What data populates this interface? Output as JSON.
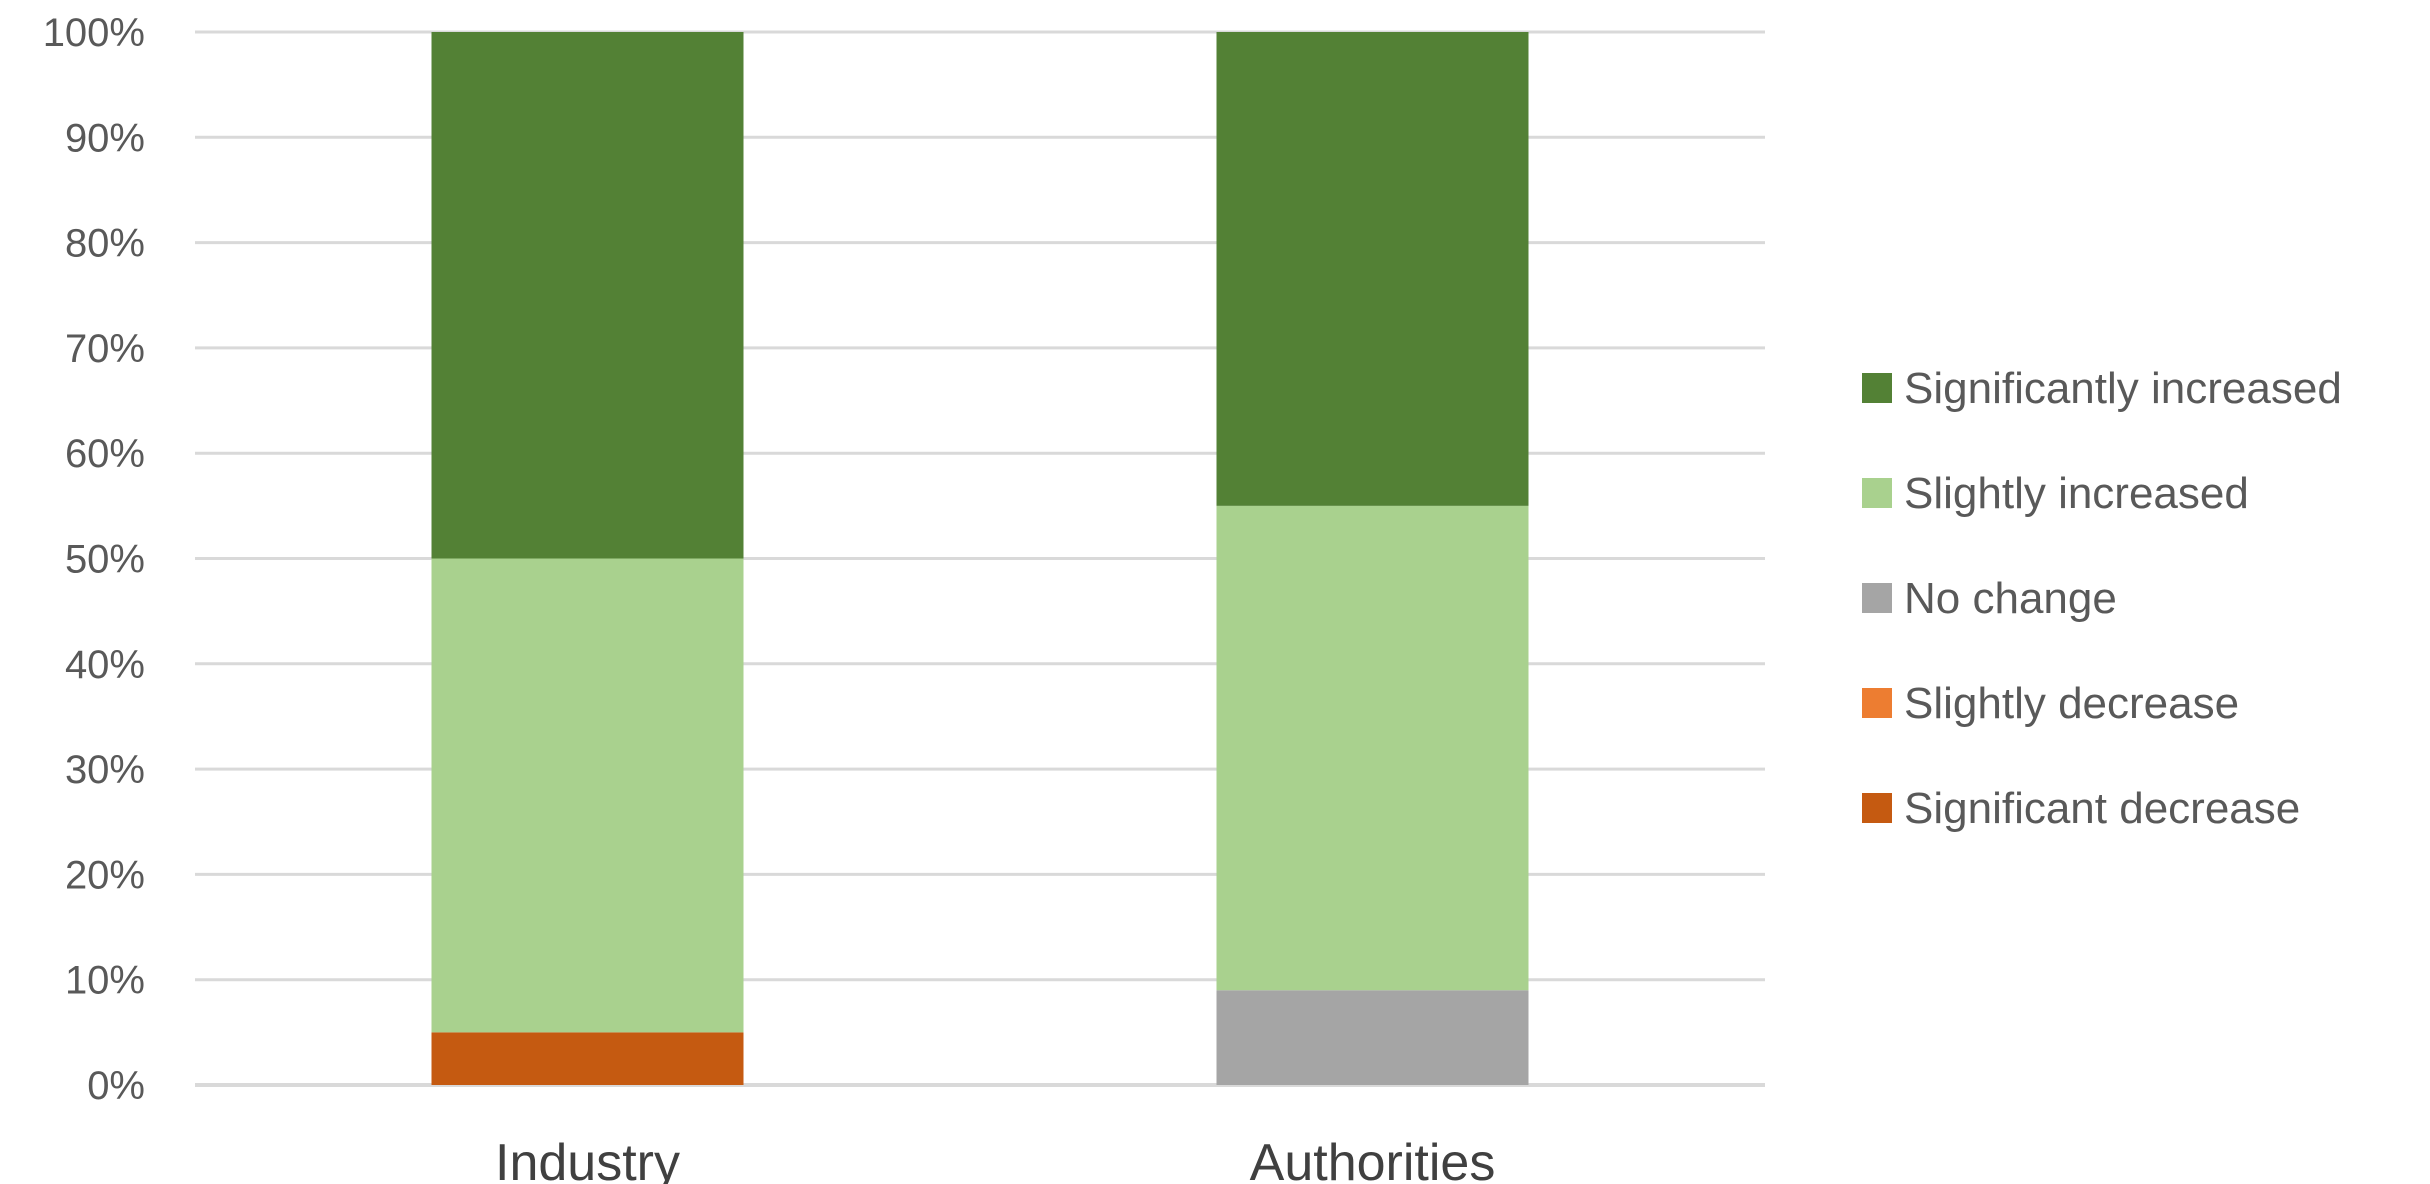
{
  "chart_data": {
    "type": "bar",
    "stacked": true,
    "categories": [
      "Industry",
      "Authorities"
    ],
    "series": [
      {
        "name": "Significant decrease",
        "color": "#c55a11",
        "values": [
          5,
          0
        ]
      },
      {
        "name": "Slightly decrease",
        "color": "#ed7d31",
        "values": [
          0,
          0
        ]
      },
      {
        "name": "No change",
        "color": "#a5a5a5",
        "values": [
          0,
          9
        ]
      },
      {
        "name": "Slightly increased",
        "color": "#a9d18e",
        "values": [
          45,
          46
        ]
      },
      {
        "name": "Significantly increased",
        "color": "#538135",
        "values": [
          50,
          45
        ]
      }
    ],
    "ylim": [
      0,
      100
    ],
    "y_ticks": [
      "0%",
      "10%",
      "20%",
      "30%",
      "40%",
      "50%",
      "60%",
      "70%",
      "80%",
      "90%",
      "100%"
    ],
    "grid": true,
    "legend_position": "right",
    "legend_order": [
      "Significantly increased",
      "Slightly increased",
      "No change",
      "Slightly decrease",
      "Significant decrease"
    ]
  }
}
